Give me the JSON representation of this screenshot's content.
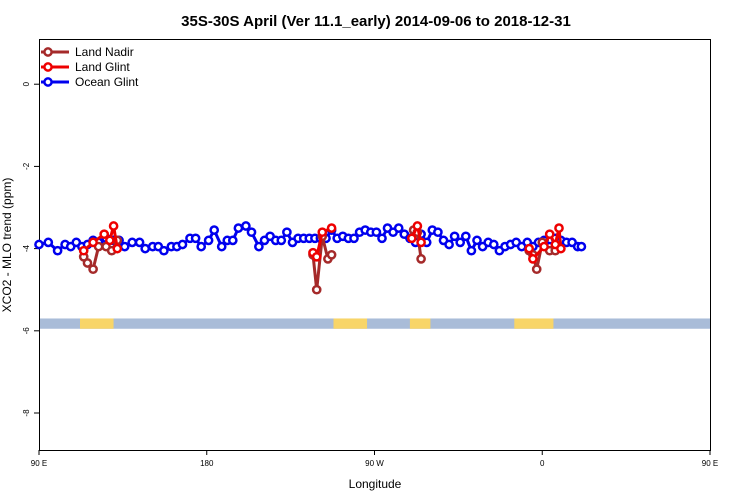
{
  "chart_data": {
    "type": "line",
    "title": "35S-30S April (Ver 11.1_early)   2014-09-06 to 2018-12-31",
    "xlabel": "Longitude",
    "ylabel": "XCO2 - MLO trend (ppm)",
    "xlim": [
      90,
      450
    ],
    "ylim": [
      -8.9,
      1.1
    ],
    "x_ticks": [
      {
        "value": 90,
        "label": "90 E"
      },
      {
        "value": 180,
        "label": "180"
      },
      {
        "value": 270,
        "label": "90 W"
      },
      {
        "value": 360,
        "label": "0"
      },
      {
        "value": 450,
        "label": "90 E"
      },
      {
        "value": 540,
        "label": "180"
      }
    ],
    "y_ticks": [
      {
        "value": 0,
        "label": "0"
      },
      {
        "value": -2,
        "label": "-2"
      },
      {
        "value": -4,
        "label": "-4"
      },
      {
        "value": -6,
        "label": "-6"
      },
      {
        "value": -8,
        "label": "-8"
      }
    ],
    "legend_position": "top-left",
    "grid": false,
    "colors": {
      "land_nadir": "#a52a2a",
      "land_glint": "#ee0000",
      "ocean_glint": "#0000ee",
      "ocean_band": "#a9bcd8",
      "land_band": "#f8d568"
    },
    "land_band": {
      "y_range": [
        -5.95,
        -5.7
      ],
      "land_segments": [
        {
          "lon_start": 112,
          "lon_end": 130
        },
        {
          "lon_start": 248,
          "lon_end": 266
        },
        {
          "lon_start": 289,
          "lon_end": 300
        },
        {
          "lon_start": 345,
          "lon_end": 366
        }
      ]
    },
    "series": [
      {
        "name": "Land Nadir",
        "segments": [
          [
            [
              114,
              -4.2
            ],
            [
              116,
              -4.35
            ],
            [
              119,
              -4.5
            ],
            [
              122,
              -3.95
            ],
            [
              126,
              -3.95
            ],
            [
              129,
              -4.05
            ],
            [
              132,
              -3.8
            ]
          ],
          [
            [
              237,
              -4.15
            ],
            [
              239,
              -5.0
            ],
            [
              242,
              -3.7
            ],
            [
              245,
              -4.25
            ],
            [
              247,
              -4.15
            ]
          ],
          [
            [
              291,
              -3.55
            ],
            [
              293,
              -3.6
            ],
            [
              295,
              -4.25
            ]
          ],
          [
            [
              353,
              -4.05
            ],
            [
              355,
              -4.15
            ],
            [
              357,
              -4.5
            ],
            [
              360,
              -3.85
            ],
            [
              364,
              -4.05
            ],
            [
              367,
              -4.05
            ]
          ]
        ]
      },
      {
        "name": "Land Glint",
        "segments": [
          [
            [
              114,
              -4.05
            ],
            [
              119,
              -3.85
            ],
            [
              125,
              -3.65
            ],
            [
              128,
              -3.8
            ],
            [
              130,
              -3.45
            ],
            [
              132,
              -4.0
            ]
          ],
          [
            [
              237,
              -4.1
            ],
            [
              239,
              -4.2
            ],
            [
              242,
              -3.6
            ],
            [
              247,
              -3.5
            ]
          ],
          [
            [
              290,
              -3.75
            ],
            [
              293,
              -3.45
            ],
            [
              295,
              -3.85
            ]
          ],
          [
            [
              353,
              -4.0
            ],
            [
              355,
              -4.25
            ],
            [
              361,
              -3.95
            ],
            [
              364,
              -3.65
            ],
            [
              367,
              -3.9
            ],
            [
              369,
              -3.5
            ],
            [
              370,
              -4.0
            ]
          ]
        ]
      },
      {
        "name": "Ocean Glint",
        "segments": [
          [
            [
              90,
              -3.9
            ],
            [
              95,
              -3.85
            ],
            [
              100,
              -4.05
            ],
            [
              104,
              -3.9
            ],
            [
              107,
              -3.95
            ],
            [
              110,
              -3.85
            ],
            [
              113,
              -3.95
            ],
            [
              116,
              -3.9
            ],
            [
              119,
              -3.8
            ],
            [
              122,
              -3.85
            ],
            [
              126,
              -3.75
            ],
            [
              130,
              -3.8
            ],
            [
              133,
              -3.8
            ],
            [
              136,
              -3.95
            ],
            [
              140,
              -3.85
            ],
            [
              144,
              -3.85
            ],
            [
              147,
              -4.0
            ],
            [
              151,
              -3.95
            ],
            [
              154,
              -3.95
            ],
            [
              157,
              -4.05
            ],
            [
              161,
              -3.95
            ],
            [
              164,
              -3.95
            ],
            [
              167,
              -3.9
            ],
            [
              171,
              -3.75
            ],
            [
              174,
              -3.75
            ],
            [
              177,
              -3.95
            ],
            [
              181,
              -3.8
            ],
            [
              184,
              -3.55
            ],
            [
              188,
              -3.95
            ],
            [
              191,
              -3.8
            ],
            [
              194,
              -3.8
            ],
            [
              197,
              -3.5
            ],
            [
              201,
              -3.45
            ],
            [
              204,
              -3.6
            ],
            [
              208,
              -3.95
            ],
            [
              211,
              -3.8
            ],
            [
              214,
              -3.7
            ],
            [
              217,
              -3.8
            ],
            [
              220,
              -3.8
            ],
            [
              223,
              -3.6
            ],
            [
              226,
              -3.85
            ],
            [
              229,
              -3.75
            ],
            [
              232,
              -3.75
            ],
            [
              235,
              -3.75
            ],
            [
              238,
              -3.75
            ],
            [
              241,
              -3.75
            ],
            [
              244,
              -3.75
            ],
            [
              247,
              -3.55
            ],
            [
              250,
              -3.75
            ],
            [
              253,
              -3.7
            ],
            [
              256,
              -3.75
            ],
            [
              259,
              -3.75
            ],
            [
              262,
              -3.6
            ],
            [
              265,
              -3.55
            ],
            [
              268,
              -3.6
            ],
            [
              271,
              -3.6
            ],
            [
              274,
              -3.75
            ],
            [
              277,
              -3.5
            ],
            [
              280,
              -3.6
            ],
            [
              283,
              -3.5
            ],
            [
              286,
              -3.65
            ],
            [
              289,
              -3.75
            ],
            [
              292,
              -3.85
            ],
            [
              295,
              -3.65
            ],
            [
              298,
              -3.85
            ],
            [
              301,
              -3.55
            ],
            [
              304,
              -3.6
            ],
            [
              307,
              -3.8
            ],
            [
              310,
              -3.9
            ],
            [
              313,
              -3.7
            ],
            [
              316,
              -3.85
            ],
            [
              319,
              -3.7
            ],
            [
              322,
              -4.05
            ],
            [
              325,
              -3.8
            ],
            [
              328,
              -3.95
            ],
            [
              331,
              -3.85
            ],
            [
              334,
              -3.9
            ],
            [
              337,
              -4.05
            ],
            [
              340,
              -3.95
            ],
            [
              343,
              -3.9
            ],
            [
              346,
              -3.85
            ],
            [
              349,
              -3.95
            ],
            [
              352,
              -3.85
            ],
            [
              355,
              -3.95
            ],
            [
              358,
              -3.85
            ],
            [
              361,
              -3.8
            ],
            [
              364,
              -3.95
            ],
            [
              367,
              -3.75
            ],
            [
              370,
              -3.8
            ],
            [
              373,
              -3.85
            ],
            [
              376,
              -3.85
            ],
            [
              379,
              -3.95
            ],
            [
              381,
              -3.95
            ]
          ]
        ]
      }
    ]
  }
}
